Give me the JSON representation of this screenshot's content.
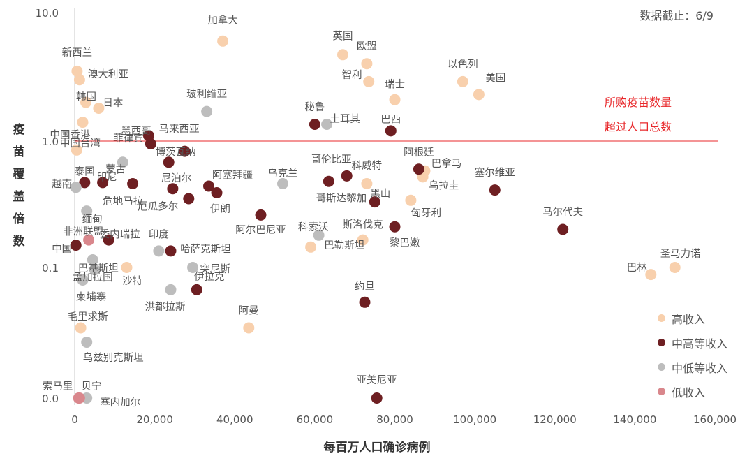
{
  "chart_data": {
    "type": "scatter",
    "xlabel": "每百万人口确诊病例",
    "ylabel": "疫苗覆盖倍数",
    "xlim": [
      0,
      160000
    ],
    "x_ticks": [
      "0",
      "20,000",
      "40,000",
      "60,000",
      "80,000",
      "100,000",
      "120,000",
      "140,000",
      "160,000"
    ],
    "y_ticks": [
      "0.0",
      "0.1",
      "1.0",
      "10.0"
    ],
    "y_scale": "log",
    "date_note": "数据截止：6/9",
    "reference_line": {
      "y": 1.0,
      "label_lines": [
        "所购疫苗数量",
        "超过人口总数"
      ],
      "color": "#e8282b"
    },
    "legend_placement": "bottom-right",
    "groups": [
      {
        "key": "high",
        "name": "高收入",
        "color": "#f8d0ad"
      },
      {
        "key": "upper_middle",
        "name": "中高等收入",
        "color": "#6e1f22"
      },
      {
        "key": "lower_middle",
        "name": "中低等收入",
        "color": "#bdbdbd"
      },
      {
        "key": "low",
        "name": "低收入",
        "color": "#d9878c"
      }
    ],
    "points": [
      {
        "name": "加拿大",
        "x": 37000,
        "y": 6.0,
        "group": "high"
      },
      {
        "name": "新西兰",
        "x": 600,
        "y": 3.5,
        "group": "high"
      },
      {
        "name": "澳大利亚",
        "x": 1200,
        "y": 3.0,
        "group": "high"
      },
      {
        "name": "韩国",
        "x": 2800,
        "y": 2.0,
        "group": "high"
      },
      {
        "name": "日本",
        "x": 6000,
        "y": 1.8,
        "group": "high"
      },
      {
        "name": "中国香港",
        "x": 2000,
        "y": 1.4,
        "group": "high"
      },
      {
        "name": "中国台湾",
        "x": 500,
        "y": 0.85,
        "group": "high"
      },
      {
        "name": "英国",
        "x": 67000,
        "y": 4.7,
        "group": "high"
      },
      {
        "name": "欧盟",
        "x": 73000,
        "y": 4.0,
        "group": "high"
      },
      {
        "name": "智利",
        "x": 73500,
        "y": 2.9,
        "group": "high"
      },
      {
        "name": "以色列",
        "x": 97000,
        "y": 2.9,
        "group": "high"
      },
      {
        "name": "美国",
        "x": 101000,
        "y": 2.3,
        "group": "high"
      },
      {
        "name": "瑞士",
        "x": 80000,
        "y": 2.1,
        "group": "high"
      },
      {
        "name": "科威特",
        "x": 73000,
        "y": 0.46,
        "group": "high"
      },
      {
        "name": "巴拿马",
        "x": 87500,
        "y": 0.58,
        "group": "high"
      },
      {
        "name": "乌拉圭",
        "x": 87000,
        "y": 0.52,
        "group": "high"
      },
      {
        "name": "匈牙利",
        "x": 84000,
        "y": 0.34,
        "group": "high"
      },
      {
        "name": "斯洛伐克",
        "x": 72000,
        "y": 0.165,
        "group": "high"
      },
      {
        "name": "巴勒斯坦",
        "x": 59000,
        "y": 0.145,
        "group": "high"
      },
      {
        "name": "沙特",
        "x": 13000,
        "y": 0.1,
        "group": "high"
      },
      {
        "name": "毛里求斯",
        "x": 1500,
        "y": 0.025,
        "group": "high"
      },
      {
        "name": "阿曼",
        "x": 43500,
        "y": 0.025,
        "group": "high"
      },
      {
        "name": "圣马力诺",
        "x": 150000,
        "y": 0.1,
        "group": "high"
      },
      {
        "name": "巴林",
        "x": 144000,
        "y": 0.085,
        "group": "high"
      },
      {
        "name": "秘鲁",
        "x": 60000,
        "y": 1.35,
        "group": "upper_middle"
      },
      {
        "name": "巴西",
        "x": 79000,
        "y": 1.2,
        "group": "upper_middle"
      },
      {
        "name": "墨西哥",
        "x": 18500,
        "y": 1.1,
        "group": "upper_middle"
      },
      {
        "name": "菲律宾",
        "x": 19000,
        "y": 0.95,
        "group": "upper_middle"
      },
      {
        "name": "马来西亚",
        "x": 27500,
        "y": 0.83,
        "group": "upper_middle"
      },
      {
        "name": "博茨瓦纳",
        "x": 23500,
        "y": 0.68,
        "group": "upper_middle"
      },
      {
        "name": "阿根廷",
        "x": 86000,
        "y": 0.6,
        "group": "upper_middle"
      },
      {
        "name": "哥伦比亚",
        "x": 68000,
        "y": 0.53,
        "group": "upper_middle"
      },
      {
        "name": "塞尔维亚",
        "x": 105000,
        "y": 0.41,
        "group": "upper_middle"
      },
      {
        "name": "哥斯达黎加",
        "x": 63500,
        "y": 0.48,
        "group": "upper_middle"
      },
      {
        "name": "泰国",
        "x": 2500,
        "y": 0.47,
        "group": "upper_middle"
      },
      {
        "name": "印尼",
        "x": 7000,
        "y": 0.47,
        "group": "upper_middle"
      },
      {
        "name": "危地马拉",
        "x": 14500,
        "y": 0.46,
        "group": "upper_middle"
      },
      {
        "name": "尼泊尔",
        "x": 24500,
        "y": 0.42,
        "group": "upper_middle"
      },
      {
        "name": "阿塞拜疆",
        "x": 33500,
        "y": 0.44,
        "group": "upper_middle"
      },
      {
        "name": "伊朗",
        "x": 35500,
        "y": 0.39,
        "group": "upper_middle"
      },
      {
        "name": "厄瓜多尔",
        "x": 28500,
        "y": 0.35,
        "group": "upper_middle"
      },
      {
        "name": "黑山",
        "x": 75000,
        "y": 0.33,
        "group": "upper_middle"
      },
      {
        "name": "阿尔巴尼亚",
        "x": 46500,
        "y": 0.26,
        "group": "upper_middle"
      },
      {
        "name": "黎巴嫩",
        "x": 80000,
        "y": 0.21,
        "group": "upper_middle"
      },
      {
        "name": "马尔代夫",
        "x": 122000,
        "y": 0.2,
        "group": "upper_middle"
      },
      {
        "name": "中国",
        "x": 300,
        "y": 0.15,
        "group": "upper_middle"
      },
      {
        "name": "委内瑞拉",
        "x": 8500,
        "y": 0.165,
        "group": "upper_middle"
      },
      {
        "name": "哈萨克斯坦",
        "x": 24000,
        "y": 0.135,
        "group": "upper_middle"
      },
      {
        "name": "伊拉克",
        "x": 30500,
        "y": 0.06,
        "group": "upper_middle"
      },
      {
        "name": "约旦",
        "x": 72500,
        "y": 0.045,
        "group": "upper_middle"
      },
      {
        "name": "亚美尼亚",
        "x": 75500,
        "y": 0.005,
        "group": "upper_middle"
      },
      {
        "name": "玻利维亚",
        "x": 33000,
        "y": 1.7,
        "group": "lower_middle"
      },
      {
        "name": "土耳其",
        "x": 63000,
        "y": 1.35,
        "group": "lower_middle"
      },
      {
        "name": "越南",
        "x": 300,
        "y": 0.43,
        "group": "lower_middle"
      },
      {
        "name": "蒙古",
        "x": 12000,
        "y": 0.68,
        "group": "lower_middle"
      },
      {
        "name": "乌克兰",
        "x": 52000,
        "y": 0.46,
        "group": "lower_middle"
      },
      {
        "name": "缅甸",
        "x": 3000,
        "y": 0.28,
        "group": "lower_middle"
      },
      {
        "name": "科索沃",
        "x": 61000,
        "y": 0.18,
        "group": "lower_middle"
      },
      {
        "name": "印度",
        "x": 21000,
        "y": 0.135,
        "group": "lower_middle"
      },
      {
        "name": "巴基斯坦",
        "x": 4500,
        "y": 0.115,
        "group": "lower_middle"
      },
      {
        "name": "孟加拉国",
        "x": 5000,
        "y": 0.095,
        "group": "lower_middle"
      },
      {
        "name": "突尼斯",
        "x": 29500,
        "y": 0.1,
        "group": "lower_middle"
      },
      {
        "name": "柬埔寨",
        "x": 2000,
        "y": 0.075,
        "group": "lower_middle"
      },
      {
        "name": "洪都拉斯",
        "x": 24000,
        "y": 0.06,
        "group": "lower_middle"
      },
      {
        "name": "乌兹别克斯坦",
        "x": 3000,
        "y": 0.018,
        "group": "lower_middle"
      },
      {
        "name": "塞内加尔",
        "x": 3000,
        "y": 0.005,
        "group": "lower_middle"
      },
      {
        "name": "非洲联盟",
        "x": 3500,
        "y": 0.165,
        "group": "low"
      },
      {
        "name": "索马里",
        "x": 1000,
        "y": 0.005,
        "group": "low"
      },
      {
        "name": "贝宁",
        "x": 1200,
        "y": 0.005,
        "group": "low"
      }
    ]
  }
}
